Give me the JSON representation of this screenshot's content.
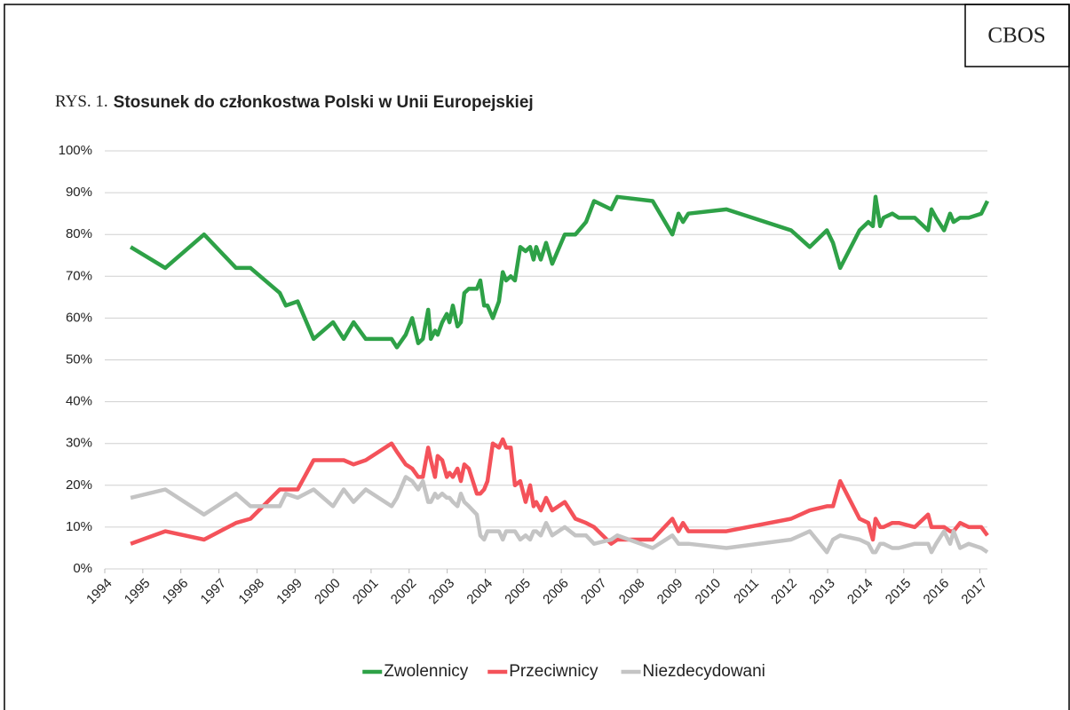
{
  "chart_data": {
    "type": "line",
    "source": "CBOS",
    "figure_label": "RYS. 1.",
    "title": "Stosunek do członkostwa Polski w Unii Europejskiej",
    "x": [
      1994.68,
      1995.59,
      1996.61,
      1997.45,
      1997.83,
      1998.6,
      1998.76,
      1999.07,
      1999.49,
      2000.0,
      2000.28,
      2000.54,
      2000.86,
      2001.54,
      2001.68,
      2001.91,
      2002.08,
      2002.24,
      2002.36,
      2002.5,
      2002.57,
      2002.68,
      2002.75,
      2002.87,
      2002.99,
      2003.06,
      2003.15,
      2003.27,
      2003.36,
      2003.45,
      2003.57,
      2003.78,
      2003.87,
      2003.97,
      2004.06,
      2004.2,
      2004.36,
      2004.46,
      2004.55,
      2004.67,
      2004.78,
      2004.92,
      2005.06,
      2005.18,
      2005.27,
      2005.34,
      2005.46,
      2005.6,
      2005.76,
      2006.09,
      2006.37,
      2006.65,
      2006.86,
      2007.31,
      2007.47,
      2008.4,
      2008.92,
      2009.08,
      2009.2,
      2009.34,
      2010.34,
      2012.04,
      2012.53,
      2012.98,
      2013.14,
      2013.33,
      2013.84,
      2014.07,
      2014.19,
      2014.26,
      2014.38,
      2014.47,
      2014.7,
      2014.87,
      2015.29,
      2015.64,
      2015.73,
      2015.85,
      2016.06,
      2016.22,
      2016.31,
      2016.48,
      2016.71,
      2017.04,
      2017.2
    ],
    "series": [
      {
        "name": "Zwolennicy",
        "color": "#2ea147",
        "values": [
          77,
          72,
          80,
          72,
          72,
          66,
          63,
          64,
          55,
          59,
          55,
          59,
          55,
          55,
          53,
          56,
          60,
          54,
          55,
          62,
          55,
          57,
          56,
          59,
          61,
          59,
          63,
          58,
          59,
          66,
          67,
          67,
          69,
          63,
          63,
          60,
          64,
          71,
          69,
          70,
          69,
          77,
          76,
          77,
          74,
          77,
          74,
          78,
          73,
          80,
          80,
          83,
          88,
          86,
          89,
          88,
          80,
          85,
          83,
          85,
          86,
          81,
          77,
          81,
          78,
          72,
          81,
          83,
          82,
          89,
          82,
          84,
          85,
          84,
          84,
          81,
          86,
          84,
          81,
          85,
          83,
          84,
          84,
          85,
          88
        ]
      },
      {
        "name": "Przeciwnicy",
        "color": "#f4525a",
        "values": [
          6,
          9,
          7,
          11,
          12,
          19,
          19,
          19,
          26,
          26,
          26,
          25,
          26,
          30,
          28,
          25,
          24,
          22,
          22,
          29,
          26,
          22,
          27,
          26,
          22,
          23,
          22,
          24,
          21,
          25,
          24,
          18,
          18,
          19,
          21,
          30,
          29,
          31,
          29,
          29,
          20,
          21,
          16,
          20,
          15,
          16,
          14,
          17,
          14,
          16,
          12,
          11,
          10,
          6,
          7,
          7,
          12,
          9,
          11,
          9,
          9,
          12,
          14,
          15,
          15,
          21,
          12,
          11,
          7,
          12,
          10,
          10,
          11,
          11,
          10,
          13,
          10,
          10,
          10,
          9,
          9,
          11,
          10,
          10,
          8
        ]
      },
      {
        "name": "Niezdecydowani",
        "color": "#c4c4c4",
        "values": [
          17,
          19,
          13,
          18,
          15,
          15,
          18,
          17,
          19,
          15,
          19,
          16,
          19,
          15,
          17,
          22,
          21,
          19,
          21,
          16,
          16,
          18,
          17,
          18,
          17,
          17,
          16,
          15,
          18,
          16,
          15,
          13,
          8,
          7,
          9,
          9,
          9,
          7,
          9,
          9,
          9,
          7,
          8,
          7,
          9,
          9,
          8,
          11,
          8,
          10,
          8,
          8,
          6,
          7,
          8,
          5,
          8,
          6,
          6,
          6,
          5,
          7,
          9,
          4,
          7,
          8,
          7,
          6,
          4,
          4,
          6,
          6,
          5,
          5,
          6,
          6,
          4,
          6,
          9,
          6,
          9,
          5,
          6,
          5,
          4
        ]
      }
    ],
    "xlim": [
      1994,
      2017.2
    ],
    "xticks": [
      1994,
      1995,
      1996,
      1997,
      1998,
      1999,
      2000,
      2001,
      2002,
      2003,
      2004,
      2005,
      2006,
      2007,
      2008,
      2009,
      2010,
      2011,
      2012,
      2013,
      2014,
      2015,
      2016,
      2017
    ],
    "ylim": [
      0,
      100
    ],
    "yticks": [
      {
        "value": 0,
        "label": "0%"
      },
      {
        "value": 10,
        "label": "10%"
      },
      {
        "value": 20,
        "label": "20%"
      },
      {
        "value": 30,
        "label": "30%"
      },
      {
        "value": 40,
        "label": "40%"
      },
      {
        "value": 50,
        "label": "50%"
      },
      {
        "value": 60,
        "label": "60%"
      },
      {
        "value": 70,
        "label": "70%"
      },
      {
        "value": 80,
        "label": "80%"
      },
      {
        "value": 90,
        "label": "90%"
      },
      {
        "value": 100,
        "label": "100%"
      }
    ],
    "grid": true,
    "legend": "bottom"
  }
}
